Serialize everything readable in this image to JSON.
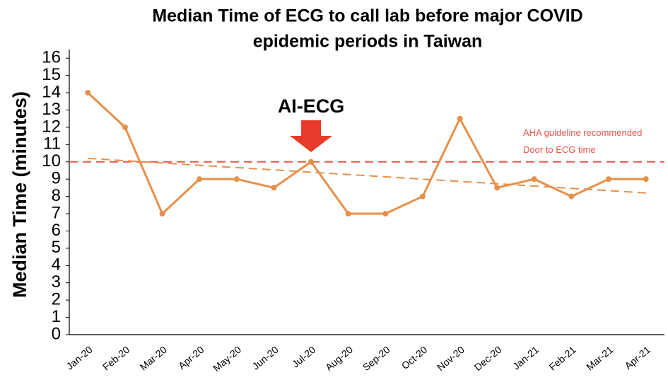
{
  "chart_data": {
    "type": "line",
    "title": [
      "Median Time of ECG to call lab before major COVID",
      "epidemic periods in Taiwan"
    ],
    "y_label": "Median Time (minutes)",
    "categories": [
      "Jan-20",
      "Feb-20",
      "Mar-20",
      "Apr-20",
      "May-20",
      "Jun-20",
      "Jul-20",
      "Aug-20",
      "Sep-20",
      "Oct-20",
      "Nov-20",
      "Dec-20",
      "Jan-21",
      "Feb-21",
      "Mar-21",
      "Apr-21"
    ],
    "series": [
      {
        "color": "#e6904a",
        "values": [
          14,
          12,
          7,
          9,
          9,
          8.5,
          10,
          7,
          7,
          8,
          12.5,
          8.5,
          9,
          8,
          9,
          9
        ]
      }
    ],
    "trendline": {
      "color": "#e6904a",
      "values": [
        10.2,
        8.2
      ]
    },
    "reference_line": {
      "value": 10,
      "color": "#e8574a",
      "label": [
        "AHA guideline recommended",
        "Door to ECG time"
      ]
    },
    "annotation": {
      "text": "AI-ECG",
      "category": 6,
      "color": "#e83a2a"
    },
    "ylim": [
      0,
      16.5
    ],
    "yticks": [
      0,
      1,
      2,
      3,
      4,
      5,
      6,
      7,
      8,
      9,
      10,
      11,
      12,
      13,
      14,
      15,
      16
    ]
  }
}
